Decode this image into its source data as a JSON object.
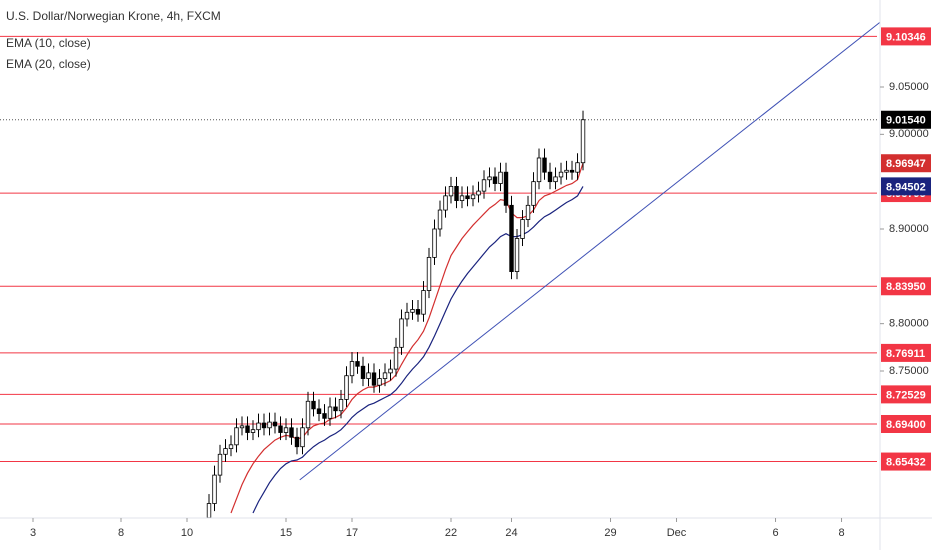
{
  "chart_data": {
    "type": "candlestick",
    "title": "U.S. Dollar/Norwegian Krone, 4h, FXCM",
    "x": [
      38,
      39,
      40,
      41,
      42,
      43,
      44,
      45,
      46,
      47,
      48,
      49,
      50,
      51,
      52,
      53,
      54,
      55,
      56,
      57,
      58,
      59,
      60,
      61,
      62,
      63,
      64,
      65,
      66,
      67,
      68,
      69,
      70,
      71,
      72,
      73,
      74,
      75,
      76,
      77,
      78,
      79,
      80,
      81,
      82,
      83,
      84,
      85,
      86,
      87,
      88,
      89,
      90,
      91,
      92,
      93,
      94,
      95,
      96,
      97,
      98,
      99,
      100,
      101,
      102,
      103,
      104,
      105,
      106
    ],
    "open": [
      8.595,
      8.61,
      8.64,
      8.662,
      8.668,
      8.672,
      8.69,
      8.692,
      8.685,
      8.688,
      8.695,
      8.69,
      8.696,
      8.692,
      8.685,
      8.69,
      8.68,
      8.67,
      8.69,
      8.718,
      8.71,
      8.705,
      8.7,
      8.712,
      8.708,
      8.72,
      8.745,
      8.76,
      8.755,
      8.742,
      8.748,
      8.735,
      8.742,
      8.748,
      8.752,
      8.775,
      8.805,
      8.812,
      8.815,
      8.81,
      8.835,
      8.87,
      8.9,
      8.92,
      8.935,
      8.945,
      8.93,
      8.935,
      8.932,
      8.936,
      8.94,
      8.952,
      8.955,
      8.948,
      8.96,
      8.925,
      8.855,
      8.89,
      8.91,
      8.925,
      8.95,
      8.975,
      8.96,
      8.95,
      8.955,
      8.96,
      8.962,
      8.96,
      8.97
    ],
    "high": [
      8.62,
      8.65,
      8.672,
      8.678,
      8.682,
      8.7,
      8.702,
      8.702,
      8.698,
      8.705,
      8.705,
      8.706,
      8.706,
      8.702,
      8.7,
      8.7,
      8.69,
      8.7,
      8.728,
      8.728,
      8.72,
      8.715,
      8.722,
      8.722,
      8.73,
      8.755,
      8.77,
      8.77,
      8.765,
      8.758,
      8.758,
      8.752,
      8.758,
      8.762,
      8.785,
      8.815,
      8.822,
      8.825,
      8.825,
      8.845,
      8.88,
      8.91,
      8.93,
      8.945,
      8.955,
      8.955,
      8.945,
      8.945,
      8.946,
      8.95,
      8.962,
      8.965,
      8.965,
      8.97,
      8.97,
      8.935,
      8.9,
      8.92,
      8.935,
      8.96,
      8.985,
      8.985,
      8.97,
      8.965,
      8.97,
      8.972,
      8.972,
      8.98,
      9.025
    ],
    "low": [
      8.587,
      8.602,
      8.632,
      8.654,
      8.66,
      8.664,
      8.682,
      8.677,
      8.677,
      8.68,
      8.682,
      8.682,
      8.684,
      8.677,
      8.677,
      8.672,
      8.662,
      8.662,
      8.682,
      8.702,
      8.697,
      8.692,
      8.692,
      8.7,
      8.7,
      8.712,
      8.737,
      8.747,
      8.734,
      8.734,
      8.727,
      8.727,
      8.734,
      8.74,
      8.744,
      8.767,
      8.797,
      8.804,
      8.802,
      8.802,
      8.827,
      8.862,
      8.892,
      8.912,
      8.927,
      8.922,
      8.922,
      8.924,
      8.924,
      8.928,
      8.932,
      8.944,
      8.94,
      8.94,
      8.917,
      8.847,
      8.847,
      8.882,
      8.902,
      8.917,
      8.942,
      8.952,
      8.942,
      8.942,
      8.947,
      8.952,
      8.952,
      8.952,
      8.962
    ],
    "close": [
      8.61,
      8.64,
      8.662,
      8.668,
      8.672,
      8.69,
      8.692,
      8.685,
      8.688,
      8.695,
      8.69,
      8.696,
      8.692,
      8.685,
      8.69,
      8.68,
      8.67,
      8.69,
      8.718,
      8.71,
      8.705,
      8.7,
      8.712,
      8.708,
      8.72,
      8.745,
      8.76,
      8.755,
      8.742,
      8.748,
      8.735,
      8.742,
      8.748,
      8.752,
      8.775,
      8.805,
      8.812,
      8.815,
      8.81,
      8.835,
      8.87,
      8.9,
      8.92,
      8.935,
      8.945,
      8.93,
      8.935,
      8.932,
      8.936,
      8.94,
      8.952,
      8.955,
      8.948,
      8.96,
      8.925,
      8.855,
      8.89,
      8.91,
      8.925,
      8.95,
      8.975,
      8.96,
      8.95,
      8.955,
      8.96,
      8.962,
      8.96,
      8.97,
      9.0154
    ],
    "up_color": "#ffffff",
    "down_color": "#000000",
    "series": [
      {
        "name": "EMA (10, close)",
        "color": "#d32f2f",
        "values": [
          null,
          null,
          null,
          null,
          8.6,
          8.615,
          8.63,
          8.642,
          8.652,
          8.66,
          8.667,
          8.672,
          8.677,
          8.68,
          8.682,
          8.681,
          8.678,
          8.68,
          8.687,
          8.692,
          8.694,
          8.695,
          8.699,
          8.701,
          8.704,
          8.711,
          8.72,
          8.726,
          8.73,
          8.733,
          8.733,
          8.735,
          8.737,
          8.74,
          8.746,
          8.757,
          8.767,
          8.776,
          8.783,
          8.792,
          8.806,
          8.823,
          8.84,
          8.857,
          8.872,
          8.881,
          8.89,
          8.897,
          8.904,
          8.91,
          8.916,
          8.922,
          8.926,
          8.931,
          8.93,
          8.917,
          8.912,
          8.912,
          8.914,
          8.92,
          8.93,
          8.935,
          8.937,
          8.94,
          8.943,
          8.946,
          8.948,
          8.952,
          8.96947
        ]
      },
      {
        "name": "EMA (20, close)",
        "color": "#1a237e",
        "values": [
          null,
          null,
          null,
          null,
          null,
          null,
          null,
          null,
          8.6,
          8.612,
          8.622,
          8.632,
          8.64,
          8.647,
          8.652,
          8.655,
          8.656,
          8.659,
          8.665,
          8.67,
          8.674,
          8.677,
          8.681,
          8.684,
          8.688,
          8.694,
          8.701,
          8.706,
          8.71,
          8.714,
          8.716,
          8.719,
          8.722,
          8.725,
          8.73,
          8.737,
          8.745,
          8.752,
          8.758,
          8.765,
          8.775,
          8.787,
          8.8,
          8.813,
          8.826,
          8.836,
          8.845,
          8.853,
          8.86,
          8.867,
          8.874,
          8.881,
          8.886,
          8.892,
          8.895,
          8.892,
          8.892,
          8.894,
          8.897,
          8.902,
          8.908,
          8.913,
          8.916,
          8.92,
          8.924,
          8.928,
          8.931,
          8.935,
          8.94502
        ]
      }
    ],
    "xlim": [
      0,
      159.45
    ],
    "xticks": [
      {
        "value": 6,
        "label": "3"
      },
      {
        "value": 22,
        "label": "8"
      },
      {
        "value": 34,
        "label": "10"
      },
      {
        "value": 52,
        "label": "15"
      },
      {
        "value": 64,
        "label": "17"
      },
      {
        "value": 82,
        "label": "22"
      },
      {
        "value": 93,
        "label": "24"
      },
      {
        "value": 111,
        "label": "29"
      },
      {
        "value": 123,
        "label": "Dec"
      },
      {
        "value": 141,
        "label": "6"
      },
      {
        "value": 153,
        "label": "8"
      }
    ],
    "ylim": [
      8.5947,
      9.1419
    ],
    "yticks": [
      {
        "value": 9.05,
        "label": "9.05000"
      },
      {
        "value": 9.0,
        "label": "9.00000"
      },
      {
        "value": 8.9,
        "label": "8.90000"
      },
      {
        "value": 8.8,
        "label": "8.80000"
      },
      {
        "value": 8.75,
        "label": "8.75000"
      }
    ],
    "levels": [
      9.10346,
      8.93795,
      {
        "value": 8.8395,
        "label": "8.83950"
      },
      8.76911,
      8.72529,
      {
        "value": 8.694,
        "label": "8.69400"
      },
      8.65432
    ],
    "level_color": "#f23645",
    "last_price": {
      "value": 9.0154,
      "label": "9.01540"
    },
    "trendline": {
      "x": [
        54.5,
        161
      ],
      "values": [
        8.635,
        9.123
      ],
      "color": "#3f51b5"
    }
  }
}
